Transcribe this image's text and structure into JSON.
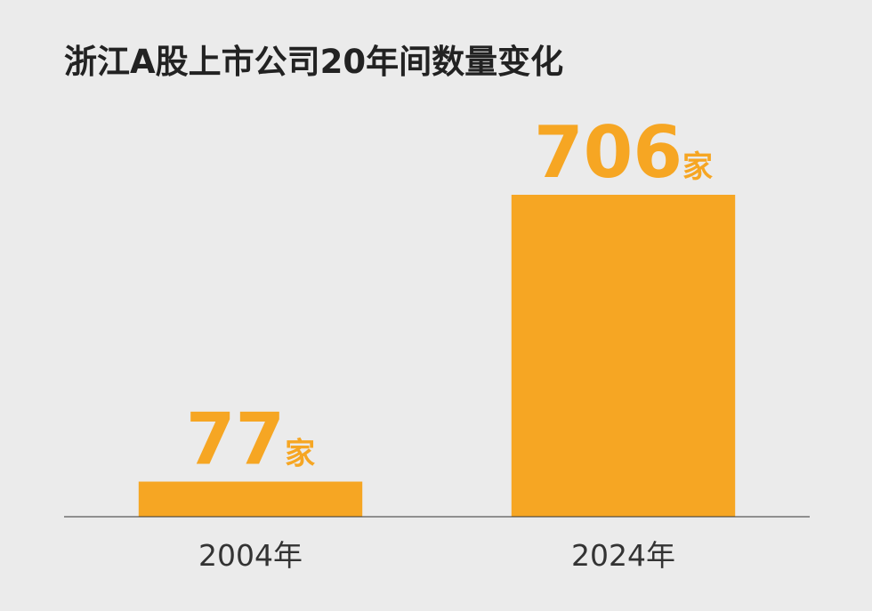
{
  "chart_data": {
    "type": "bar",
    "title": "浙江A股上市公司20年间数量变化",
    "categories": [
      "2004年",
      "2024年"
    ],
    "values": [
      77,
      706
    ],
    "value_labels": [
      "77家",
      "706家"
    ],
    "color": "#f6a623"
  }
}
